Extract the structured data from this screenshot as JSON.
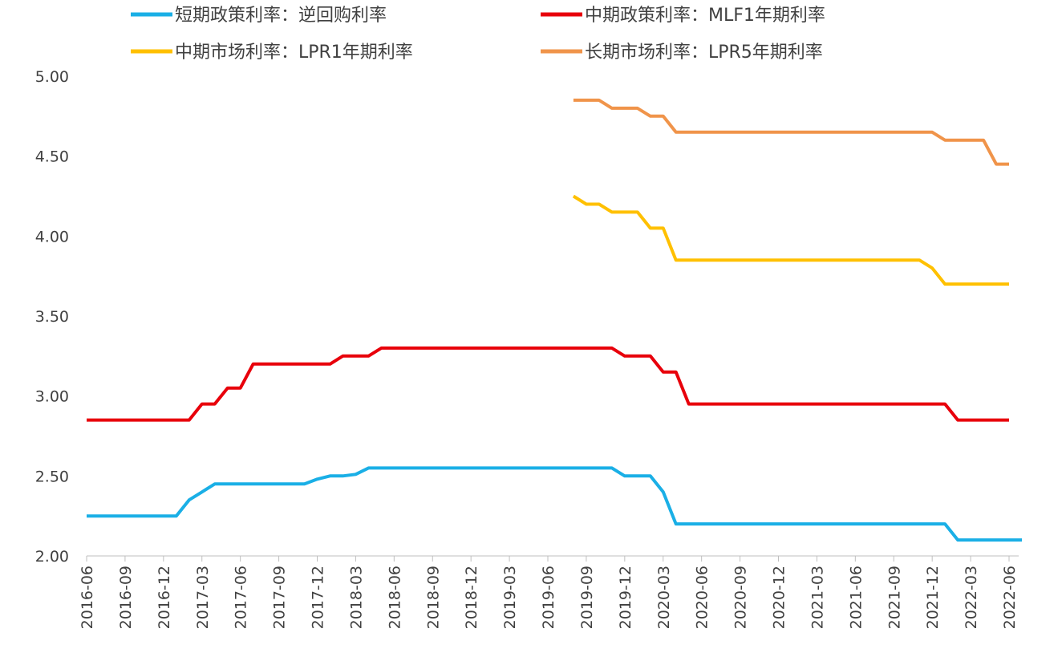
{
  "chart_data": {
    "type": "line",
    "title": "",
    "xlabel": "",
    "ylabel": "",
    "ylim": [
      2.0,
      5.0
    ],
    "y_ticks": [
      "2.00",
      "2.50",
      "3.00",
      "3.50",
      "4.00",
      "4.50",
      "5.00"
    ],
    "x_ticks": [
      "2016-06",
      "2016-09",
      "2016-12",
      "2017-03",
      "2017-06",
      "2017-09",
      "2017-12",
      "2018-03",
      "2018-06",
      "2018-09",
      "2018-12",
      "2019-03",
      "2019-06",
      "2019-09",
      "2019-12",
      "2020-03",
      "2020-06",
      "2020-09",
      "2020-12",
      "2021-03",
      "2021-06",
      "2021-09",
      "2021-12",
      "2022-03",
      "2022-06"
    ],
    "grid": false,
    "legend_position": "top",
    "series": [
      {
        "name": "短期政策利率：逆回购利率",
        "color": "#1AAFE6",
        "points": [
          [
            "2016-06",
            2.25
          ],
          [
            "2017-01",
            2.25
          ],
          [
            "2017-02",
            2.35
          ],
          [
            "2017-03",
            2.4
          ],
          [
            "2017-04",
            2.45
          ],
          [
            "2017-11",
            2.45
          ],
          [
            "2017-12",
            2.48
          ],
          [
            "2018-01",
            2.5
          ],
          [
            "2018-02",
            2.5
          ],
          [
            "2018-03",
            2.51
          ],
          [
            "2018-04",
            2.55
          ],
          [
            "2019-11",
            2.55
          ],
          [
            "2019-12",
            2.5
          ],
          [
            "2020-02",
            2.5
          ],
          [
            "2020-03",
            2.4
          ],
          [
            "2020-04",
            2.2
          ],
          [
            "2022-01",
            2.2
          ],
          [
            "2022-02",
            2.1
          ],
          [
            "2022-07",
            2.1
          ]
        ]
      },
      {
        "name": "中期政策利率：MLF1年期利率",
        "color": "#E8000B",
        "points": [
          [
            "2016-06",
            2.85
          ],
          [
            "2017-02",
            2.85
          ],
          [
            "2017-03",
            2.95
          ],
          [
            "2017-04",
            2.95
          ],
          [
            "2017-05",
            3.05
          ],
          [
            "2017-06",
            3.05
          ],
          [
            "2017-07",
            3.2
          ],
          [
            "2018-01",
            3.2
          ],
          [
            "2018-02",
            3.25
          ],
          [
            "2018-04",
            3.25
          ],
          [
            "2018-05",
            3.3
          ],
          [
            "2019-11",
            3.3
          ],
          [
            "2019-12",
            3.25
          ],
          [
            "2020-02",
            3.25
          ],
          [
            "2020-03",
            3.15
          ],
          [
            "2020-04",
            3.15
          ],
          [
            "2020-05",
            2.95
          ],
          [
            "2022-01",
            2.95
          ],
          [
            "2022-02",
            2.85
          ],
          [
            "2022-06",
            2.85
          ]
        ]
      },
      {
        "name": "中期市场利率：LPR1年期利率",
        "color": "#FFC000",
        "points": [
          [
            "2019-08",
            4.25
          ],
          [
            "2019-09",
            4.2
          ],
          [
            "2019-10",
            4.2
          ],
          [
            "2019-11",
            4.15
          ],
          [
            "2020-01",
            4.15
          ],
          [
            "2020-02",
            4.05
          ],
          [
            "2020-03",
            4.05
          ],
          [
            "2020-04",
            3.85
          ],
          [
            "2021-11",
            3.85
          ],
          [
            "2021-12",
            3.8
          ],
          [
            "2022-01",
            3.7
          ],
          [
            "2022-06",
            3.7
          ]
        ]
      },
      {
        "name": "长期市场利率：LPR5年期利率",
        "color": "#F0944A",
        "points": [
          [
            "2019-08",
            4.85
          ],
          [
            "2019-10",
            4.85
          ],
          [
            "2019-11",
            4.8
          ],
          [
            "2020-01",
            4.8
          ],
          [
            "2020-02",
            4.75
          ],
          [
            "2020-03",
            4.75
          ],
          [
            "2020-04",
            4.65
          ],
          [
            "2021-12",
            4.65
          ],
          [
            "2022-01",
            4.6
          ],
          [
            "2022-04",
            4.6
          ],
          [
            "2022-05",
            4.45
          ],
          [
            "2022-06",
            4.45
          ]
        ]
      }
    ]
  }
}
